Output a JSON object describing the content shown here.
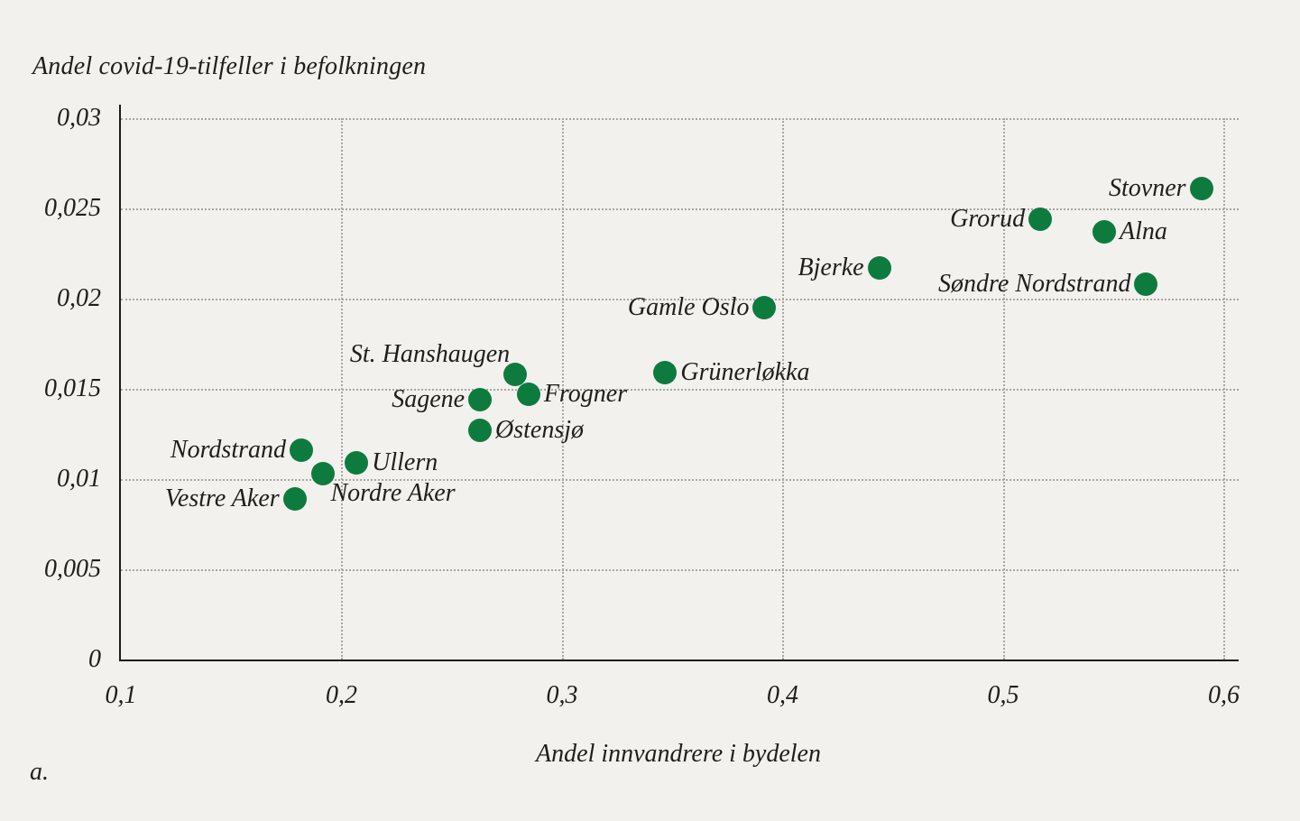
{
  "figure": {
    "panel_label": "a.",
    "colors": {
      "background": "#f2f1ed",
      "text": "#1f1e1c",
      "axis": "#1c1b19",
      "grid": "#a7a6a1",
      "marker": "#0e7b3e"
    }
  },
  "chart_data": {
    "type": "scatter",
    "xlabel": "Andel innvandrere i bydelen",
    "ylabel": "Andel covid-19-tilfeller i befolkningen",
    "xlim": [
      0.1,
      0.607
    ],
    "ylim": [
      0,
      0.0308
    ],
    "grid": "dotted",
    "legend_position": "none",
    "x_ticks": [
      {
        "value": 0.1,
        "label": "0,1"
      },
      {
        "value": 0.2,
        "label": "0,2"
      },
      {
        "value": 0.3,
        "label": "0,3"
      },
      {
        "value": 0.4,
        "label": "0,4"
      },
      {
        "value": 0.5,
        "label": "0,5"
      },
      {
        "value": 0.6,
        "label": "0,6"
      }
    ],
    "y_ticks": [
      {
        "value": 0,
        "label": "0"
      },
      {
        "value": 0.005,
        "label": "0,005"
      },
      {
        "value": 0.01,
        "label": "0,01"
      },
      {
        "value": 0.015,
        "label": "0,015"
      },
      {
        "value": 0.02,
        "label": "0,02"
      },
      {
        "value": 0.025,
        "label": "0,025"
      },
      {
        "value": 0.03,
        "label": "0,03"
      }
    ],
    "points": [
      {
        "name": "Stovner",
        "x": 0.59,
        "y": 0.0261,
        "label_side": "left"
      },
      {
        "name": "Grorud",
        "x": 0.517,
        "y": 0.0244,
        "label_side": "left"
      },
      {
        "name": "Alna",
        "x": 0.546,
        "y": 0.0237,
        "label_side": "right"
      },
      {
        "name": "Søndre Nordstrand",
        "x": 0.565,
        "y": 0.0208,
        "label_side": "left"
      },
      {
        "name": "Bjerke",
        "x": 0.444,
        "y": 0.0217,
        "label_side": "left"
      },
      {
        "name": "Gamle Oslo",
        "x": 0.392,
        "y": 0.0195,
        "label_side": "left"
      },
      {
        "name": "Grünerløkka",
        "x": 0.347,
        "y": 0.0159,
        "label_side": "right"
      },
      {
        "name": "St. Hanshaugen",
        "x": 0.279,
        "y": 0.0158,
        "label_side": "above-left"
      },
      {
        "name": "Frogner",
        "x": 0.285,
        "y": 0.0147,
        "label_side": "right"
      },
      {
        "name": "Sagene",
        "x": 0.263,
        "y": 0.0144,
        "label_side": "left"
      },
      {
        "name": "Østensjø",
        "x": 0.263,
        "y": 0.0127,
        "label_side": "right"
      },
      {
        "name": "Nordstrand",
        "x": 0.182,
        "y": 0.0116,
        "label_side": "left"
      },
      {
        "name": "Ullern",
        "x": 0.207,
        "y": 0.0109,
        "label_side": "right"
      },
      {
        "name": "Nordre Aker",
        "x": 0.192,
        "y": 0.0103,
        "label_side": "below-right"
      },
      {
        "name": "Vestre Aker",
        "x": 0.179,
        "y": 0.0089,
        "label_side": "left"
      }
    ]
  }
}
